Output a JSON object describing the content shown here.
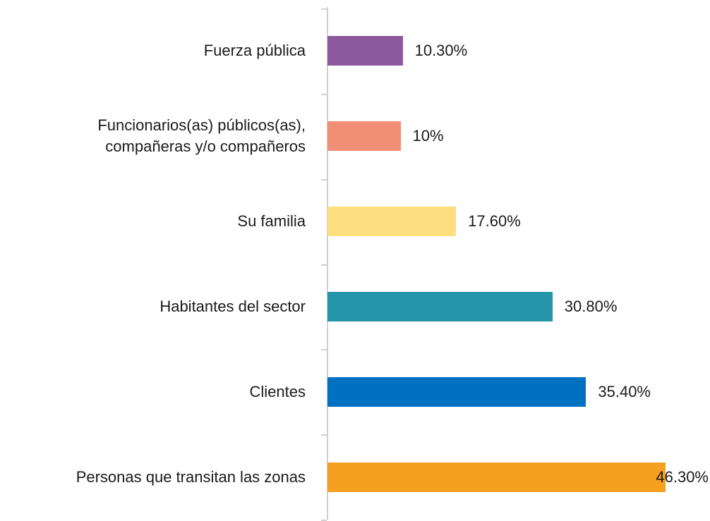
{
  "chart_data": {
    "type": "bar",
    "orientation": "horizontal",
    "categories": [
      "Fuerza pública",
      "Funcionarios(as) públicos(as),\ncompañeras y/o compañeros",
      "Su familia",
      "Habitantes del sector",
      "Clientes",
      "Personas que transitan las zonas"
    ],
    "values": [
      10.3,
      10,
      17.6,
      30.8,
      35.4,
      46.3
    ],
    "value_labels": [
      "10.30%",
      "10%",
      "17.60%",
      "30.80%",
      "35.40%",
      "46.30%"
    ],
    "colors": [
      "#8b5a9e",
      "#f08f76",
      "#fddf80",
      "#2596aa",
      "#0070c0",
      "#f5a020"
    ]
  }
}
